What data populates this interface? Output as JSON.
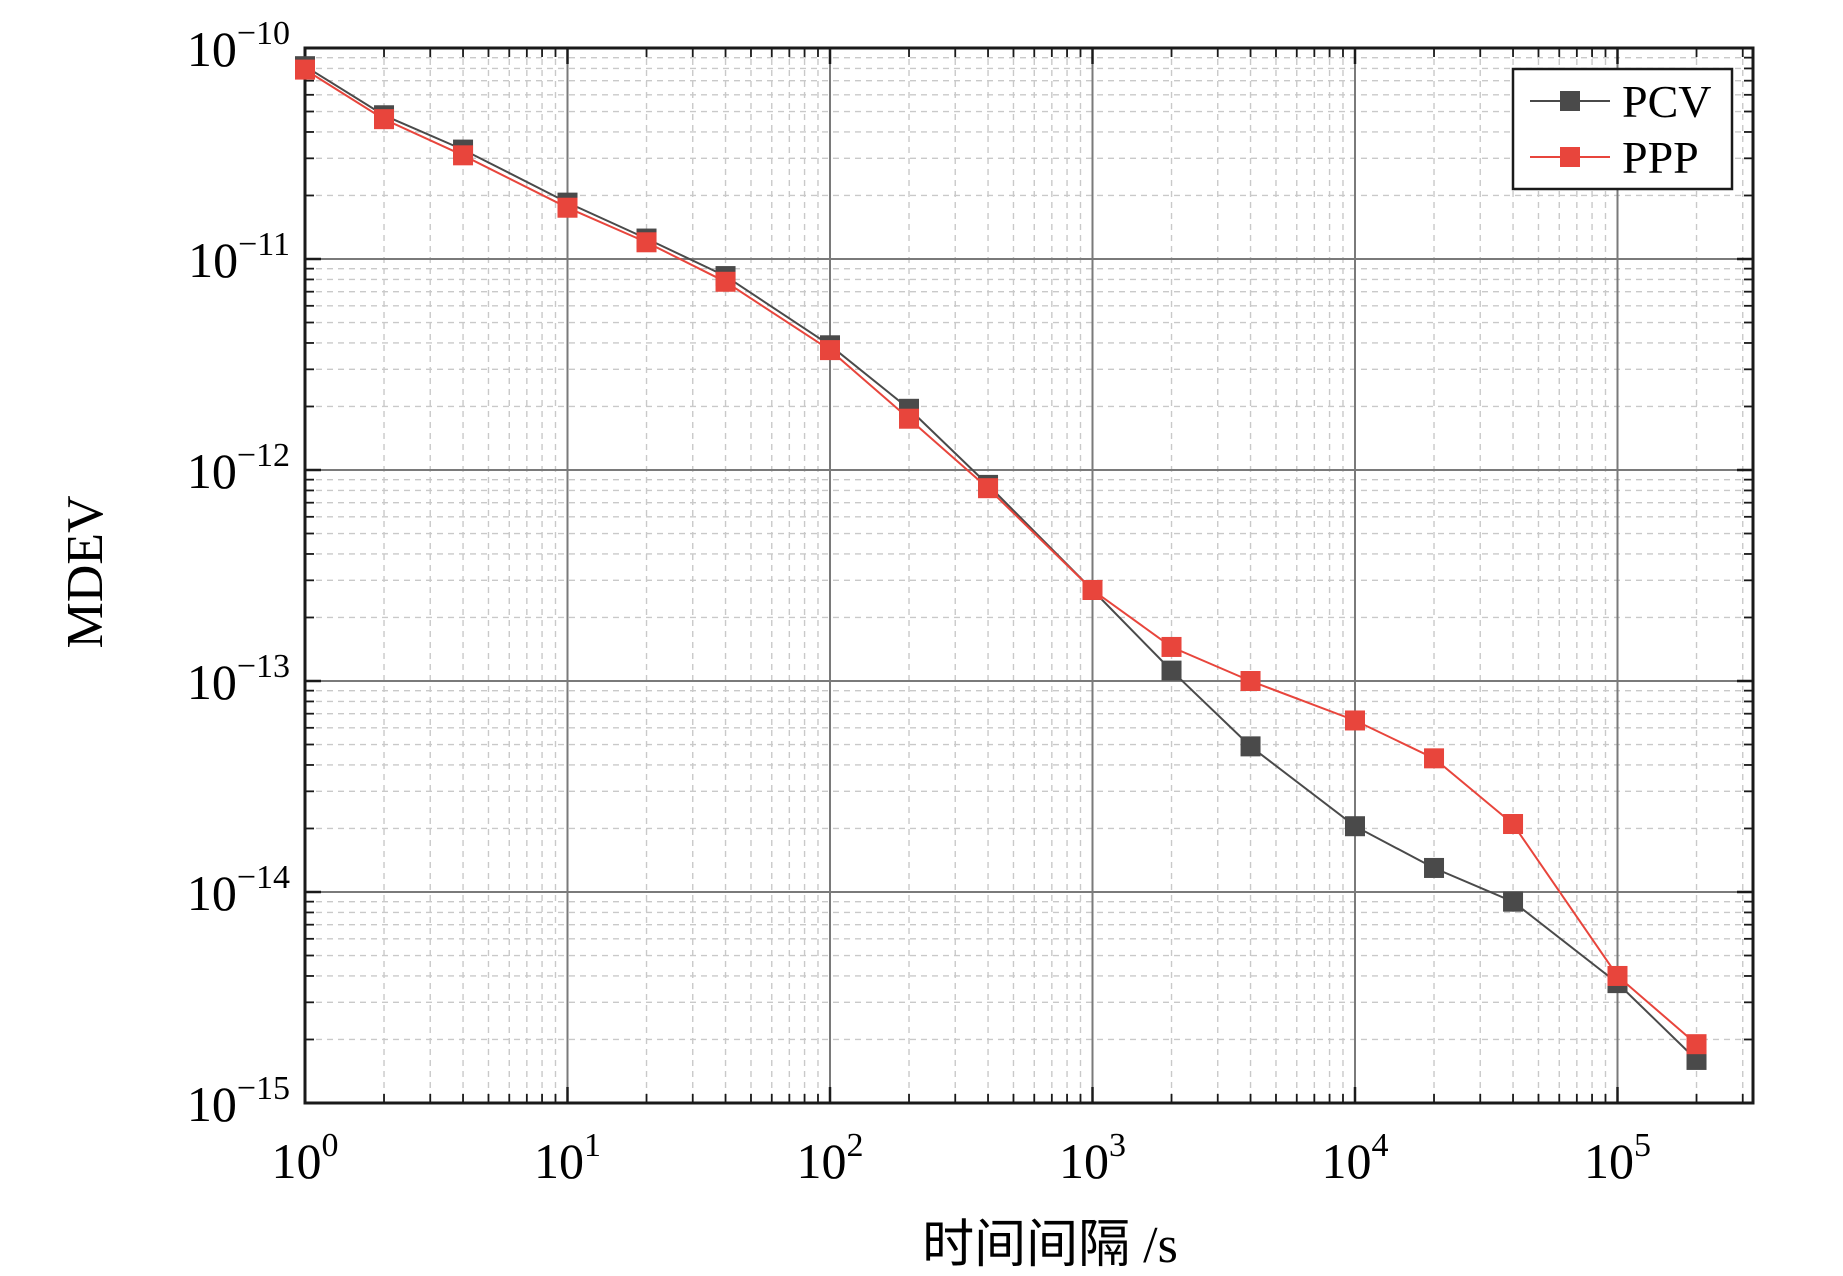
{
  "chart_data": {
    "type": "line",
    "xlabel": "时间间隔 /s",
    "ylabel": "MDEV",
    "xscale": "log",
    "yscale": "log",
    "xlim": [
      1,
      300000
    ],
    "ylim": [
      1e-15,
      1e-10
    ],
    "x_ticks": [
      {
        "value": 1,
        "base": "10",
        "exp": "0"
      },
      {
        "value": 10,
        "base": "10",
        "exp": "1"
      },
      {
        "value": 100,
        "base": "10",
        "exp": "2"
      },
      {
        "value": 1000,
        "base": "10",
        "exp": "3"
      },
      {
        "value": 10000,
        "base": "10",
        "exp": "4"
      },
      {
        "value": 100000,
        "base": "10",
        "exp": "5"
      }
    ],
    "y_ticks": [
      {
        "value": 1e-10,
        "base": "10",
        "exp": "−10"
      },
      {
        "value": 1e-11,
        "base": "10",
        "exp": "−11"
      },
      {
        "value": 1e-12,
        "base": "10",
        "exp": "−12"
      },
      {
        "value": 1e-13,
        "base": "10",
        "exp": "−13"
      },
      {
        "value": 1e-14,
        "base": "10",
        "exp": "−14"
      },
      {
        "value": 1e-15,
        "base": "10",
        "exp": "−15"
      }
    ],
    "grid": true,
    "legend_position": "top-right",
    "x": [
      1,
      2,
      4,
      10,
      20,
      40,
      100,
      200,
      400,
      1000,
      2000,
      4000,
      10000,
      20000,
      40000,
      100000,
      200000
    ],
    "series": [
      {
        "name": "PCV",
        "color": "#4a4a4a",
        "marker": "square",
        "values": [
          8.2e-11,
          4.8e-11,
          3.3e-11,
          1.85e-11,
          1.25e-11,
          8.3e-12,
          3.9e-12,
          1.95e-12,
          8.5e-13,
          2.7e-13,
          1.12e-13,
          4.9e-14,
          2.05e-14,
          1.3e-14,
          9e-15,
          3.7e-15,
          1.6e-15
        ]
      },
      {
        "name": "PPP",
        "color": "#e8453c",
        "marker": "square",
        "values": [
          7.9e-11,
          4.6e-11,
          3.1e-11,
          1.75e-11,
          1.2e-11,
          7.8e-12,
          3.7e-12,
          1.75e-12,
          8.2e-13,
          2.7e-13,
          1.45e-13,
          1e-13,
          6.5e-14,
          4.3e-14,
          2.1e-14,
          4e-15,
          1.9e-15
        ]
      }
    ]
  }
}
